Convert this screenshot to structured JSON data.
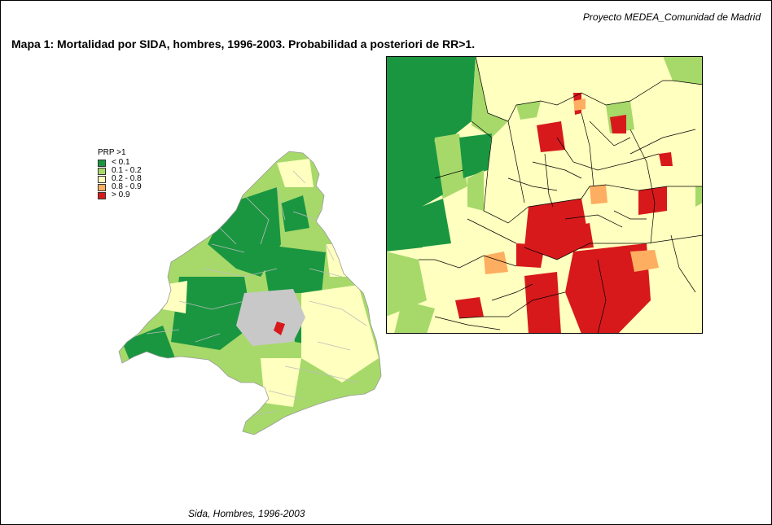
{
  "header": {
    "project": "Proyecto MEDEA_Comunidad de Madrid"
  },
  "map": {
    "title": "Mapa 1: Mortalidad por SIDA,  hombres, 1996-2003. Probabilidad a posteriori de RR>1.",
    "caption": "Sida,  Hombres, 1996-2003"
  },
  "legend": {
    "title": "PRP >1",
    "items": [
      {
        "label": "< 0.1",
        "color": "#1a9641"
      },
      {
        "label": "0.1 - 0.2",
        "color": "#a6d96a"
      },
      {
        "label": "0.2 - 0.8",
        "color": "#ffffbf"
      },
      {
        "label": "0.8 - 0.9",
        "color": "#fdae61"
      },
      {
        "label": "> 0.9",
        "color": "#d7191c"
      }
    ]
  }
}
